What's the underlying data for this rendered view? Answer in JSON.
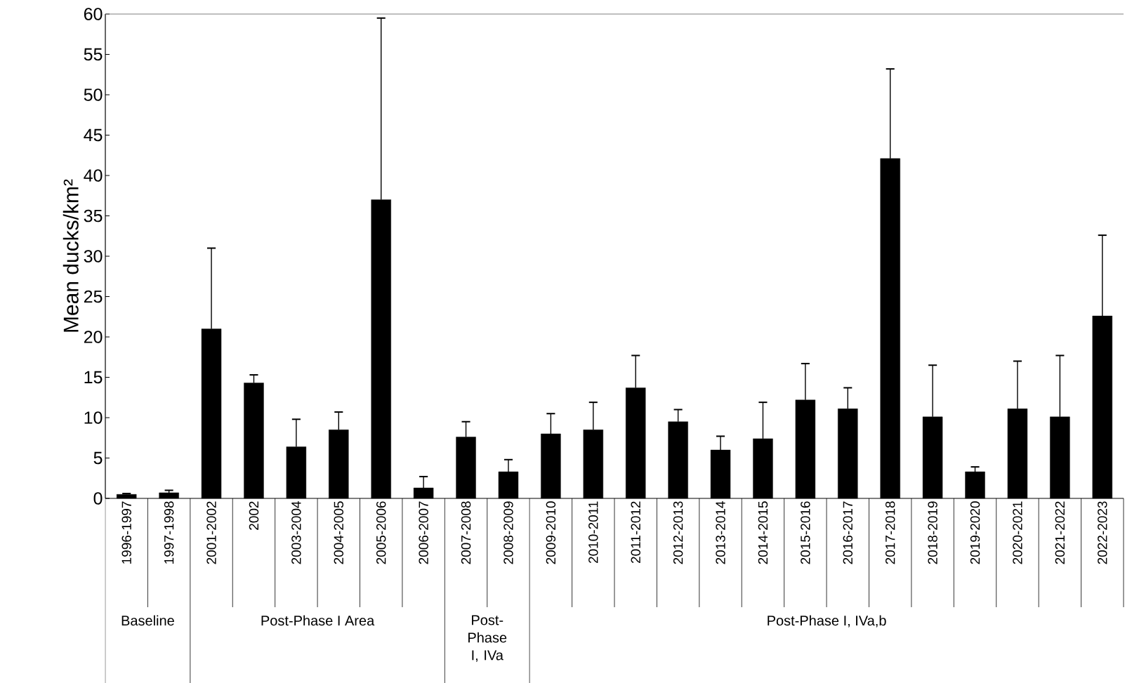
{
  "chart_data": {
    "type": "bar",
    "ylabel": "Mean ducks/km²",
    "categories": [
      "1996-1997",
      "1997-1998",
      "2001-2002",
      "2002",
      "2003-2004",
      "2004-2005",
      "2005-2006",
      "2006-2007",
      "2007-2008",
      "2008-2009",
      "2009-2010",
      "2010-2011",
      "2011-2012",
      "2012-2013",
      "2013-2014",
      "2014-2015",
      "2015-2016",
      "2016-2017",
      "2017-2018",
      "2018-2019",
      "2019-2020",
      "2020-2021",
      "2021-2022",
      "2022-2023"
    ],
    "values": [
      0.5,
      0.7,
      21.0,
      14.3,
      6.4,
      8.5,
      37.0,
      1.3,
      7.6,
      3.3,
      8.0,
      8.5,
      13.7,
      9.5,
      6.0,
      7.4,
      12.2,
      11.1,
      42.1,
      10.1,
      3.3,
      11.1,
      10.1,
      22.6
    ],
    "errors": [
      [
        0.5,
        0.6
      ],
      [
        0.7,
        1.0
      ],
      [
        21.0,
        31.0
      ],
      [
        14.3,
        15.3
      ],
      [
        6.4,
        9.8
      ],
      [
        8.5,
        10.7
      ],
      [
        37.0,
        59.5
      ],
      [
        1.3,
        2.7
      ],
      [
        7.6,
        9.5
      ],
      [
        3.3,
        4.8
      ],
      [
        8.0,
        10.5
      ],
      [
        8.5,
        11.9
      ],
      [
        13.7,
        17.7
      ],
      [
        9.5,
        11.0
      ],
      [
        6.0,
        7.7
      ],
      [
        7.4,
        11.9
      ],
      [
        12.2,
        16.7
      ],
      [
        11.1,
        13.7
      ],
      [
        42.1,
        53.2
      ],
      [
        10.1,
        16.5
      ],
      [
        3.3,
        3.9
      ],
      [
        11.1,
        17.0
      ],
      [
        10.1,
        17.7
      ],
      [
        22.6,
        32.6
      ]
    ],
    "color": "#000000",
    "ylim": [
      0,
      60
    ],
    "yticks": [
      0,
      5,
      10,
      15,
      20,
      25,
      30,
      35,
      40,
      45,
      50,
      55,
      60
    ],
    "annotations": [
      "Baseline",
      "Post-Phase I Area",
      "Post-Phase I, IVa",
      "Post-Phase I, IVa,b"
    ]
  }
}
